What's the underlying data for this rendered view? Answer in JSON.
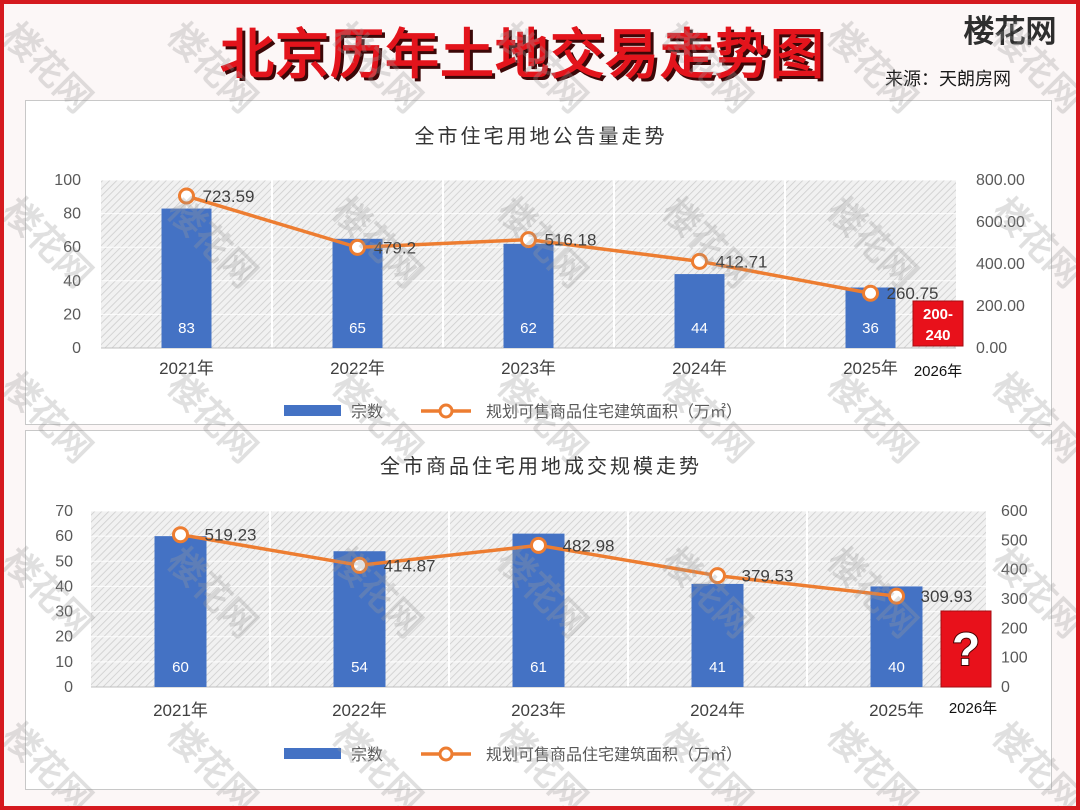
{
  "page": {
    "title": "北京历年土地交易走势图",
    "logo": "楼花网",
    "source": "来源：天朗房网",
    "watermark": "楼花网",
    "colors": {
      "frame": "#d51a1f",
      "title": "#e3141c",
      "bar": "#4472c4",
      "line": "#ed7d31",
      "annotation_box": "#e8111b"
    }
  },
  "chart_data": [
    {
      "type": "bar",
      "title": "全市住宅用地公告量走势",
      "categories": [
        "2021年",
        "2022年",
        "2023年",
        "2024年",
        "2025年"
      ],
      "series": [
        {
          "name": "宗数",
          "type": "bar",
          "axis": "left",
          "values": [
            83,
            65,
            62,
            44,
            36
          ]
        },
        {
          "name": "规划可售商品住宅建筑面积（万㎡）",
          "type": "line",
          "axis": "right",
          "values": [
            723.59,
            479.2,
            516.18,
            412.71,
            260.75
          ]
        }
      ],
      "ylim_left": [
        0,
        100
      ],
      "yticks_left": [
        "0",
        "20",
        "40",
        "60",
        "80",
        "100"
      ],
      "ylim_right": [
        0,
        800
      ],
      "yticks_right": [
        "0.00",
        "200.00",
        "400.00",
        "600.00",
        "800.00"
      ],
      "annotation": {
        "category": "2026年",
        "lines": [
          "200-",
          "240"
        ]
      },
      "grid": true,
      "legend": "bottom"
    },
    {
      "type": "bar",
      "title": "全市商品住宅用地成交规模走势",
      "categories": [
        "2021年",
        "2022年",
        "2023年",
        "2024年",
        "2025年"
      ],
      "series": [
        {
          "name": "宗数",
          "type": "bar",
          "axis": "left",
          "values": [
            60,
            54,
            61,
            41,
            40
          ]
        },
        {
          "name": "规划可售商品住宅建筑面积（万㎡）",
          "type": "line",
          "axis": "right",
          "values": [
            519.23,
            414.87,
            482.98,
            379.53,
            309.93
          ]
        }
      ],
      "ylim_left": [
        0,
        70
      ],
      "yticks_left": [
        "0",
        "10",
        "20",
        "30",
        "40",
        "50",
        "60",
        "70"
      ],
      "ylim_right": [
        0,
        600
      ],
      "yticks_right": [
        "0",
        "100",
        "200",
        "300",
        "400",
        "500",
        "600"
      ],
      "annotation": {
        "category": "2026年",
        "lines": [
          "?"
        ]
      },
      "grid": true,
      "legend": "bottom"
    }
  ]
}
